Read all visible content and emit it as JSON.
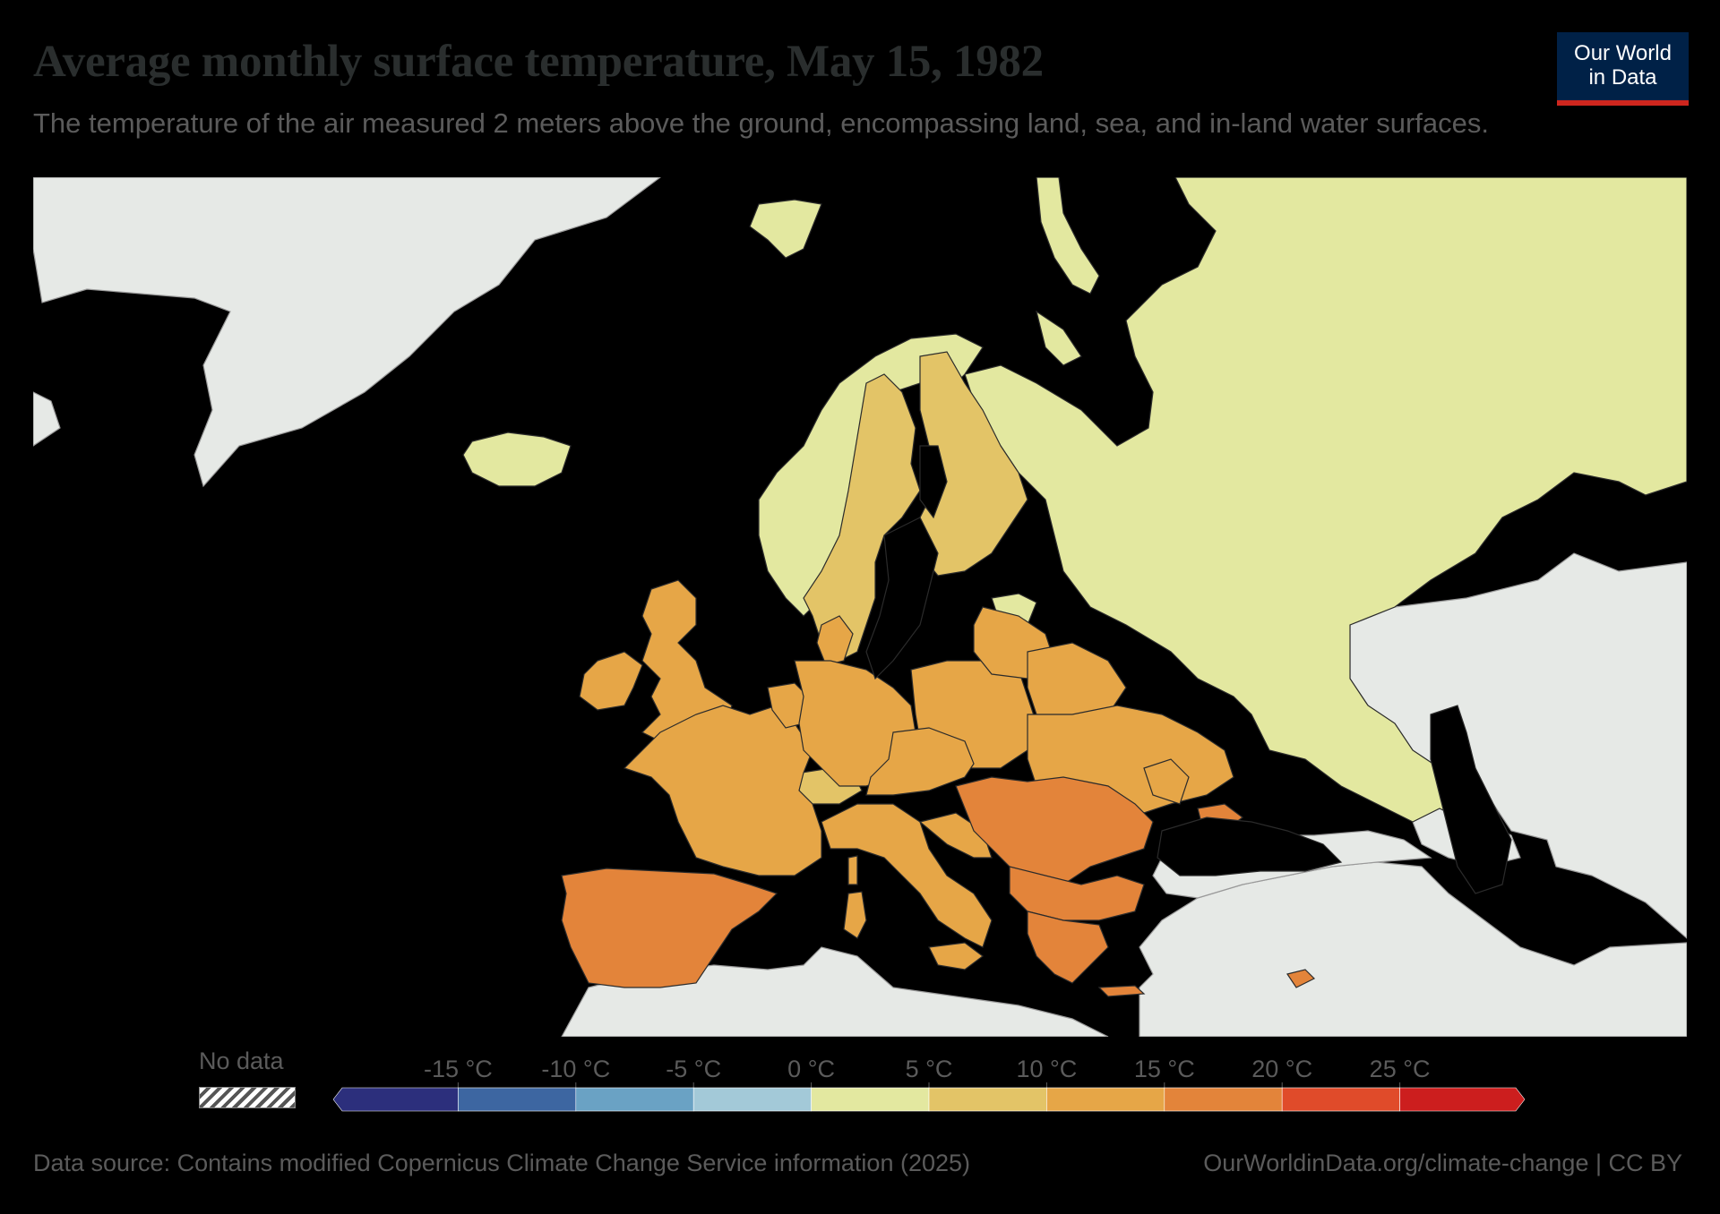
{
  "header": {
    "title": "Average monthly surface temperature, May 15, 1982",
    "subtitle": "The temperature of the air measured 2 meters above the ground, encompassing land, sea, and in-land water surfaces."
  },
  "logo": {
    "line1": "Our World",
    "line2": "in Data"
  },
  "legend": {
    "no_data_label": "No data",
    "ticks": [
      "-15 °C",
      "-10 °C",
      "-5 °C",
      "0 °C",
      "5 °C",
      "10 °C",
      "15 °C",
      "20 °C",
      "25 °C"
    ],
    "tick_values": [
      -15,
      -10,
      -5,
      0,
      5,
      10,
      15,
      20,
      25
    ],
    "bins": [
      {
        "color": "#2c2f7c"
      },
      {
        "color": "#3d66a1"
      },
      {
        "color": "#6aa2c4"
      },
      {
        "color": "#a3c9d8"
      },
      {
        "color": "#e3e8a0"
      },
      {
        "color": "#e3c467"
      },
      {
        "color": "#e6a647"
      },
      {
        "color": "#e3843a"
      },
      {
        "color": "#e04b2a"
      },
      {
        "color": "#cc1e1e"
      }
    ]
  },
  "colors": {
    "sea": "#000000",
    "no_data_land": "#e6e9e6",
    "t0_5": "#e3e8a0",
    "t5_10": "#e3c467",
    "t10_15": "#e6a647",
    "t15_20": "#e3843a",
    "border": "#2b2b2b"
  },
  "footer": {
    "source": "Data source: Contains modified Copernicus Climate Change Service information (2025)",
    "link": "OurWorldinData.org/climate-change | CC BY"
  }
}
